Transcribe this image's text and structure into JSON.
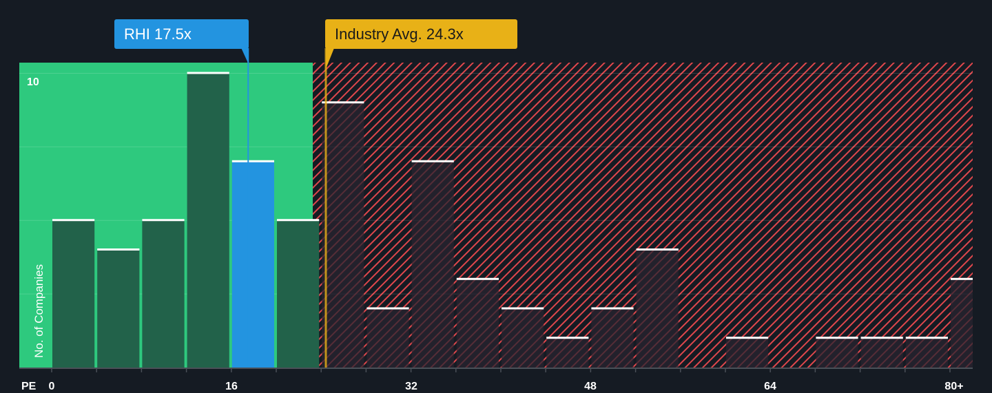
{
  "chart_data": {
    "type": "bar",
    "title": "",
    "xlabel": "PE",
    "ylabel": "No. of Companies",
    "x_ticks": [
      "0",
      "16",
      "32",
      "48",
      "64",
      "80+"
    ],
    "y_ticks": [
      "10"
    ],
    "ylim": [
      0,
      10.5
    ],
    "bin_width": 4,
    "bins_start": [
      0,
      4,
      8,
      12,
      16,
      20,
      24,
      28,
      32,
      36,
      40,
      44,
      48,
      52,
      56,
      60,
      64,
      68,
      72,
      76,
      80
    ],
    "values": [
      5,
      4,
      5,
      10,
      7,
      5,
      9,
      2,
      7,
      3,
      2,
      1,
      2,
      4,
      0,
      1,
      0,
      1,
      1,
      1,
      3
    ],
    "highlight_bin_start": 16,
    "company": {
      "label": "RHI 17.5x",
      "value": 17.5
    },
    "industry": {
      "label": "Industry Avg. 24.3x",
      "value": 24.3
    },
    "grid": true,
    "colors": {
      "background": "#151b23",
      "undervalued_zone": "#2ec97e",
      "bar_in_zone": "#22624a",
      "company_bar": "#2394e0",
      "overvalued_hatch": "#e0474c",
      "industry": "#e8b117",
      "bar_top": "#ffffff"
    }
  }
}
